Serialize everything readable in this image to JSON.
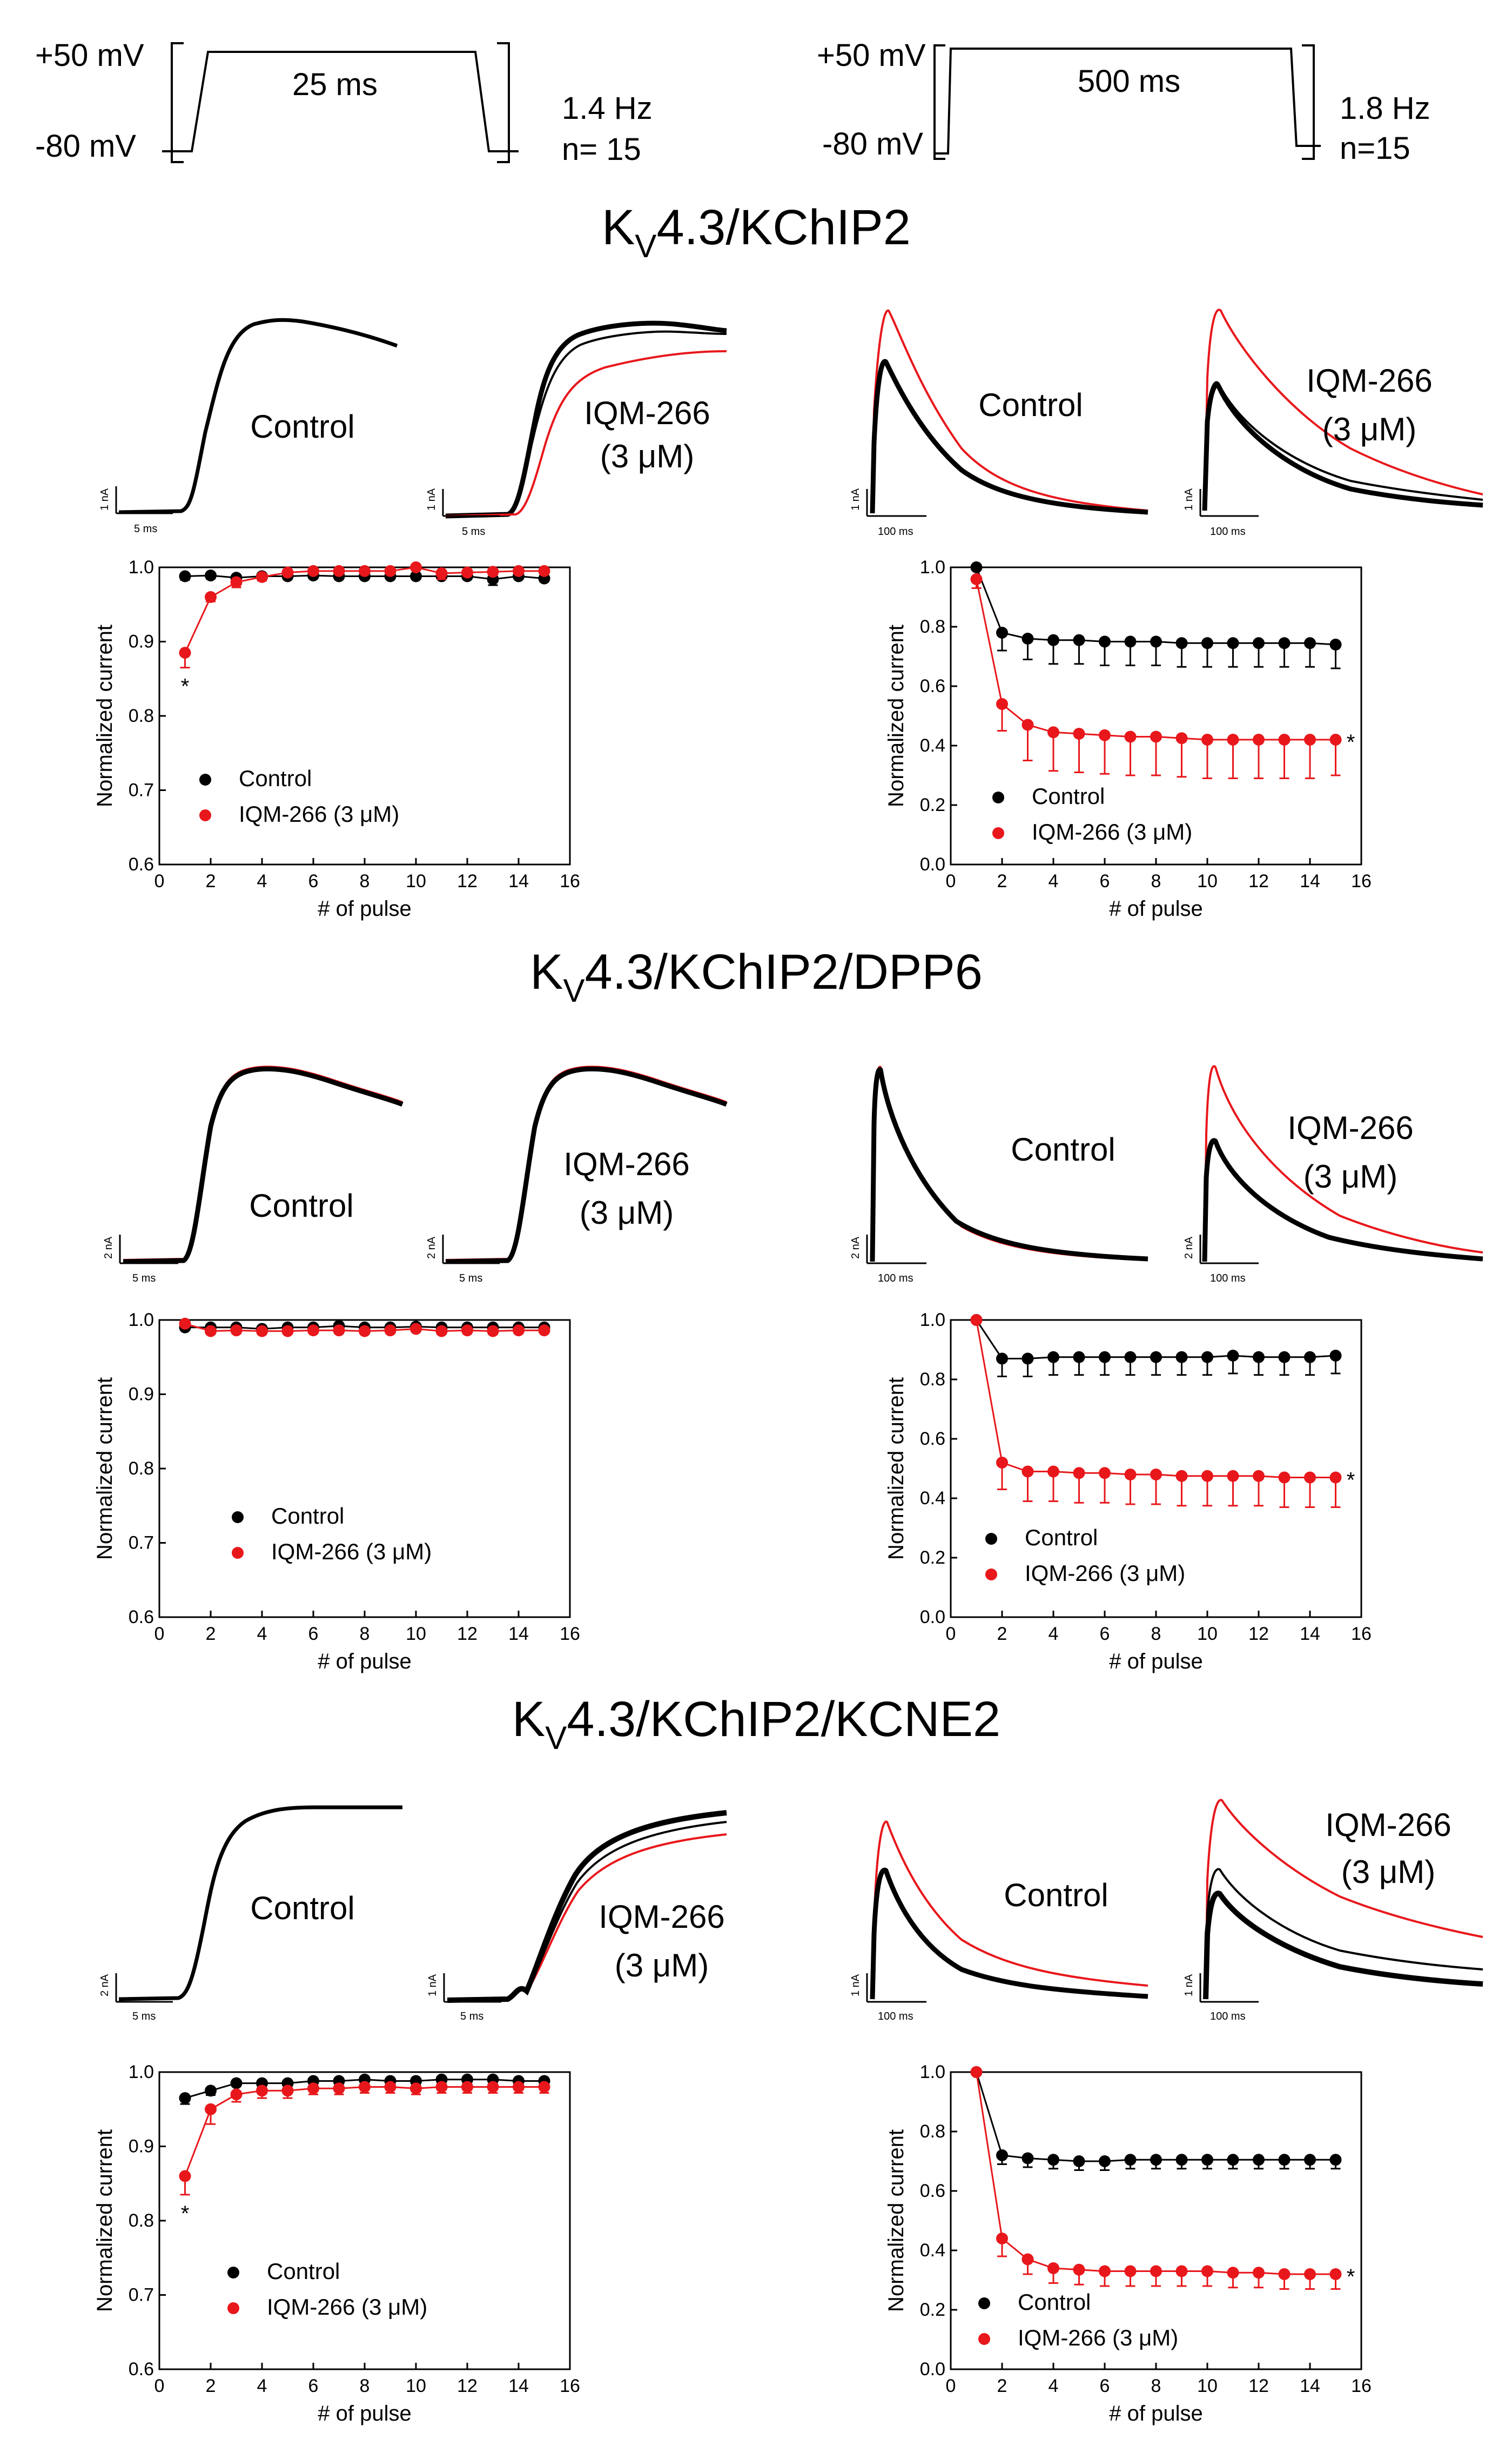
{
  "protocols": {
    "left": {
      "v_high": "+50 mV",
      "v_low": "-80 mV",
      "duration": "25 ms",
      "freq": "1.4 Hz",
      "n": "n= 15"
    },
    "right": {
      "v_high": "+50 mV",
      "v_low": "-80 mV",
      "duration": "500 ms",
      "freq": "1.8 Hz",
      "n": "n=15"
    }
  },
  "sections": [
    {
      "title_main": "K",
      "title_sub": "V",
      "title_rest": "4.3/KChIP2"
    },
    {
      "title_main": "K",
      "title_sub": "V",
      "title_rest": "4.3/KChIP2/DPP6"
    },
    {
      "title_main": "K",
      "title_sub": "V",
      "title_rest": "4.3/KChIP2/KCNE2"
    }
  ],
  "trace_labels": {
    "control": "Control",
    "drug_line1": "IQM-266",
    "drug_line2": "(3 μM)"
  },
  "scale_bars": {
    "s1": {
      "left_a_y": "1 nA",
      "left_b_y": "1 nA",
      "left_x": "5 ms",
      "right_a_y": "1 nA",
      "right_b_y": "1 nA",
      "right_x": "100 ms"
    },
    "s2": {
      "left_a_y": "2 nA",
      "left_b_y": "2 nA",
      "left_x": "5 ms",
      "right_a_y": "2 nA",
      "right_b_y": "2 nA",
      "right_x": "100 ms"
    },
    "s3": {
      "left_a_y": "2 nA",
      "left_b_y": "1 nA",
      "left_x": "5 ms",
      "right_a_y": "1 nA",
      "right_b_y": "1 nA",
      "right_x": "100 ms"
    }
  },
  "colors": {
    "control": "#000000",
    "drug": "#e8171b"
  },
  "chart_data": [
    {
      "id": "s1-left",
      "type": "scatter",
      "xlabel": "# of pulse",
      "ylabel": "Normalized current",
      "xlim": [
        0,
        16
      ],
      "ylim": [
        0.6,
        1.0
      ],
      "xticks": [
        0,
        2,
        4,
        6,
        8,
        10,
        12,
        14,
        16
      ],
      "yticks": [
        0.6,
        0.7,
        0.8,
        0.9,
        1.0
      ],
      "legend": [
        "Control",
        "IQM-266 (3 μM)"
      ],
      "annotations": [
        {
          "text": "*",
          "x": 1,
          "series": "IQM-266 (3 μM)"
        }
      ],
      "x": [
        1,
        2,
        3,
        4,
        5,
        6,
        7,
        8,
        9,
        10,
        11,
        12,
        13,
        14,
        15
      ],
      "series": [
        {
          "name": "Control",
          "values": [
            0.988,
            0.989,
            0.986,
            0.988,
            0.988,
            0.989,
            0.988,
            0.988,
            0.988,
            0.988,
            0.988,
            0.988,
            0.984,
            0.988,
            0.985
          ],
          "error": [
            0.005,
            0.004,
            0.004,
            0.004,
            0.004,
            0.004,
            0.004,
            0.004,
            0.004,
            0.004,
            0.004,
            0.004,
            0.008,
            0.004,
            0.004
          ]
        },
        {
          "name": "IQM-266 (3 μM)",
          "values": [
            0.885,
            0.96,
            0.98,
            0.987,
            0.993,
            0.995,
            0.995,
            0.995,
            0.995,
            1.0,
            0.992,
            0.993,
            0.994,
            0.995,
            0.995
          ],
          "error": [
            0.02,
            0.006,
            0.007,
            0.005,
            0.003,
            0.003,
            0.003,
            0.003,
            0.003,
            0.003,
            0.008,
            0.003,
            0.003,
            0.003,
            0.003
          ]
        }
      ]
    },
    {
      "id": "s1-right",
      "type": "scatter",
      "xlabel": "# of pulse",
      "ylabel": "Normalized current",
      "xlim": [
        0,
        16
      ],
      "ylim": [
        0.0,
        1.0
      ],
      "xticks": [
        0,
        2,
        4,
        6,
        8,
        10,
        12,
        14,
        16
      ],
      "yticks": [
        0.0,
        0.2,
        0.4,
        0.6,
        0.8,
        1.0
      ],
      "legend": [
        "Control",
        "IQM-266 (3 μM)"
      ],
      "annotations": [
        {
          "text": "*",
          "x": 15,
          "series": "IQM-266 (3 μM)"
        }
      ],
      "x": [
        1,
        2,
        3,
        4,
        5,
        6,
        7,
        8,
        9,
        10,
        11,
        12,
        13,
        14,
        15
      ],
      "series": [
        {
          "name": "Control",
          "values": [
            1.0,
            0.78,
            0.76,
            0.755,
            0.755,
            0.75,
            0.75,
            0.75,
            0.745,
            0.745,
            0.745,
            0.745,
            0.745,
            0.745,
            0.74
          ],
          "error": [
            0.0,
            0.06,
            0.07,
            0.08,
            0.08,
            0.08,
            0.08,
            0.08,
            0.08,
            0.08,
            0.08,
            0.08,
            0.08,
            0.08,
            0.08
          ]
        },
        {
          "name": "IQM-266 (3 μM)",
          "values": [
            0.96,
            0.54,
            0.47,
            0.445,
            0.44,
            0.435,
            0.43,
            0.43,
            0.425,
            0.42,
            0.42,
            0.42,
            0.42,
            0.42,
            0.42
          ],
          "error": [
            0.03,
            0.09,
            0.12,
            0.13,
            0.13,
            0.13,
            0.13,
            0.13,
            0.13,
            0.13,
            0.13,
            0.13,
            0.13,
            0.13,
            0.12
          ]
        }
      ]
    },
    {
      "id": "s2-left",
      "type": "scatter",
      "xlabel": "# of pulse",
      "ylabel": "Normalized current",
      "xlim": [
        0,
        16
      ],
      "ylim": [
        0.6,
        1.0
      ],
      "xticks": [
        0,
        2,
        4,
        6,
        8,
        10,
        12,
        14,
        16
      ],
      "yticks": [
        0.6,
        0.7,
        0.8,
        0.9,
        1.0
      ],
      "legend": [
        "Control",
        "IQM-266 (3 μM)"
      ],
      "annotations": [],
      "x": [
        1,
        2,
        3,
        4,
        5,
        6,
        7,
        8,
        9,
        10,
        11,
        12,
        13,
        14,
        15
      ],
      "series": [
        {
          "name": "Control",
          "values": [
            0.99,
            0.99,
            0.99,
            0.988,
            0.99,
            0.99,
            0.992,
            0.99,
            0.99,
            0.991,
            0.99,
            0.99,
            0.99,
            0.99,
            0.99
          ],
          "error": [
            0.003,
            0.003,
            0.003,
            0.003,
            0.003,
            0.003,
            0.003,
            0.003,
            0.003,
            0.003,
            0.003,
            0.003,
            0.003,
            0.003,
            0.003
          ]
        },
        {
          "name": "IQM-266 (3 μM)",
          "values": [
            0.995,
            0.985,
            0.986,
            0.985,
            0.985,
            0.986,
            0.986,
            0.985,
            0.986,
            0.988,
            0.985,
            0.986,
            0.985,
            0.986,
            0.986
          ],
          "error": [
            0.004,
            0.004,
            0.004,
            0.004,
            0.004,
            0.004,
            0.004,
            0.004,
            0.004,
            0.004,
            0.004,
            0.004,
            0.004,
            0.004,
            0.004
          ]
        }
      ]
    },
    {
      "id": "s2-right",
      "type": "scatter",
      "xlabel": "# of pulse",
      "ylabel": "Normalized current",
      "xlim": [
        0,
        16
      ],
      "ylim": [
        0.0,
        1.0
      ],
      "xticks": [
        0,
        2,
        4,
        6,
        8,
        10,
        12,
        14,
        16
      ],
      "yticks": [
        0.0,
        0.2,
        0.4,
        0.6,
        0.8,
        1.0
      ],
      "legend": [
        "Control",
        "IQM-266 (3 μM)"
      ],
      "annotations": [
        {
          "text": "*",
          "x": 15,
          "series": "IQM-266 (3 μM)"
        }
      ],
      "x": [
        1,
        2,
        3,
        4,
        5,
        6,
        7,
        8,
        9,
        10,
        11,
        12,
        13,
        14,
        15
      ],
      "series": [
        {
          "name": "Control",
          "values": [
            1.0,
            0.87,
            0.87,
            0.875,
            0.875,
            0.875,
            0.875,
            0.875,
            0.875,
            0.875,
            0.88,
            0.875,
            0.875,
            0.875,
            0.88
          ],
          "error": [
            0.0,
            0.06,
            0.06,
            0.06,
            0.06,
            0.06,
            0.06,
            0.06,
            0.06,
            0.06,
            0.06,
            0.06,
            0.06,
            0.06,
            0.06
          ]
        },
        {
          "name": "IQM-266 (3 μM)",
          "values": [
            1.0,
            0.52,
            0.49,
            0.49,
            0.485,
            0.485,
            0.48,
            0.48,
            0.475,
            0.475,
            0.475,
            0.475,
            0.47,
            0.47,
            0.47
          ],
          "error": [
            0.0,
            0.09,
            0.1,
            0.1,
            0.1,
            0.1,
            0.1,
            0.1,
            0.1,
            0.1,
            0.1,
            0.1,
            0.1,
            0.1,
            0.1
          ]
        }
      ]
    },
    {
      "id": "s3-left",
      "type": "scatter",
      "xlabel": "# of pulse",
      "ylabel": "Normalized current",
      "xlim": [
        0,
        16
      ],
      "ylim": [
        0.6,
        1.0
      ],
      "xticks": [
        0,
        2,
        4,
        6,
        8,
        10,
        12,
        14,
        16
      ],
      "yticks": [
        0.6,
        0.7,
        0.8,
        0.9,
        1.0
      ],
      "legend": [
        "Control",
        "IQM-266 (3 μM)"
      ],
      "annotations": [
        {
          "text": "*",
          "x": 1,
          "series": "IQM-266 (3 μM)"
        }
      ],
      "x": [
        1,
        2,
        3,
        4,
        5,
        6,
        7,
        8,
        9,
        10,
        11,
        12,
        13,
        14,
        15
      ],
      "series": [
        {
          "name": "Control",
          "values": [
            0.965,
            0.975,
            0.985,
            0.985,
            0.985,
            0.988,
            0.988,
            0.99,
            0.988,
            0.988,
            0.99,
            0.99,
            0.99,
            0.988,
            0.988
          ],
          "error": [
            0.008,
            0.006,
            0.004,
            0.004,
            0.004,
            0.004,
            0.004,
            0.004,
            0.004,
            0.004,
            0.004,
            0.004,
            0.004,
            0.004,
            0.004
          ]
        },
        {
          "name": "IQM-266 (3 μM)",
          "values": [
            0.86,
            0.95,
            0.97,
            0.975,
            0.975,
            0.978,
            0.978,
            0.98,
            0.98,
            0.978,
            0.98,
            0.98,
            0.98,
            0.98,
            0.98
          ],
          "error": [
            0.025,
            0.02,
            0.01,
            0.01,
            0.01,
            0.008,
            0.008,
            0.008,
            0.008,
            0.008,
            0.008,
            0.008,
            0.008,
            0.008,
            0.008
          ]
        }
      ]
    },
    {
      "id": "s3-right",
      "type": "scatter",
      "xlabel": "# of pulse",
      "ylabel": "Normalized current",
      "xlim": [
        0,
        16
      ],
      "ylim": [
        0.0,
        1.0
      ],
      "xticks": [
        0,
        2,
        4,
        6,
        8,
        10,
        12,
        14,
        16
      ],
      "yticks": [
        0.0,
        0.2,
        0.4,
        0.6,
        0.8,
        1.0
      ],
      "legend": [
        "Control",
        "IQM-266 (3 μM)"
      ],
      "annotations": [
        {
          "text": "*",
          "x": 15,
          "series": "IQM-266 (3 μM)"
        }
      ],
      "x": [
        1,
        2,
        3,
        4,
        5,
        6,
        7,
        8,
        9,
        10,
        11,
        12,
        13,
        14,
        15
      ],
      "series": [
        {
          "name": "Control",
          "values": [
            1.0,
            0.72,
            0.71,
            0.705,
            0.7,
            0.7,
            0.705,
            0.705,
            0.705,
            0.705,
            0.705,
            0.705,
            0.705,
            0.705,
            0.705
          ],
          "error": [
            0.0,
            0.03,
            0.03,
            0.03,
            0.03,
            0.03,
            0.03,
            0.03,
            0.03,
            0.03,
            0.03,
            0.03,
            0.03,
            0.03,
            0.03
          ]
        },
        {
          "name": "IQM-266 (3 μM)",
          "values": [
            1.0,
            0.44,
            0.37,
            0.34,
            0.335,
            0.33,
            0.33,
            0.33,
            0.33,
            0.33,
            0.325,
            0.325,
            0.32,
            0.32,
            0.32
          ],
          "error": [
            0.0,
            0.06,
            0.05,
            0.05,
            0.05,
            0.05,
            0.05,
            0.05,
            0.05,
            0.05,
            0.05,
            0.05,
            0.05,
            0.05,
            0.05
          ]
        }
      ]
    }
  ]
}
